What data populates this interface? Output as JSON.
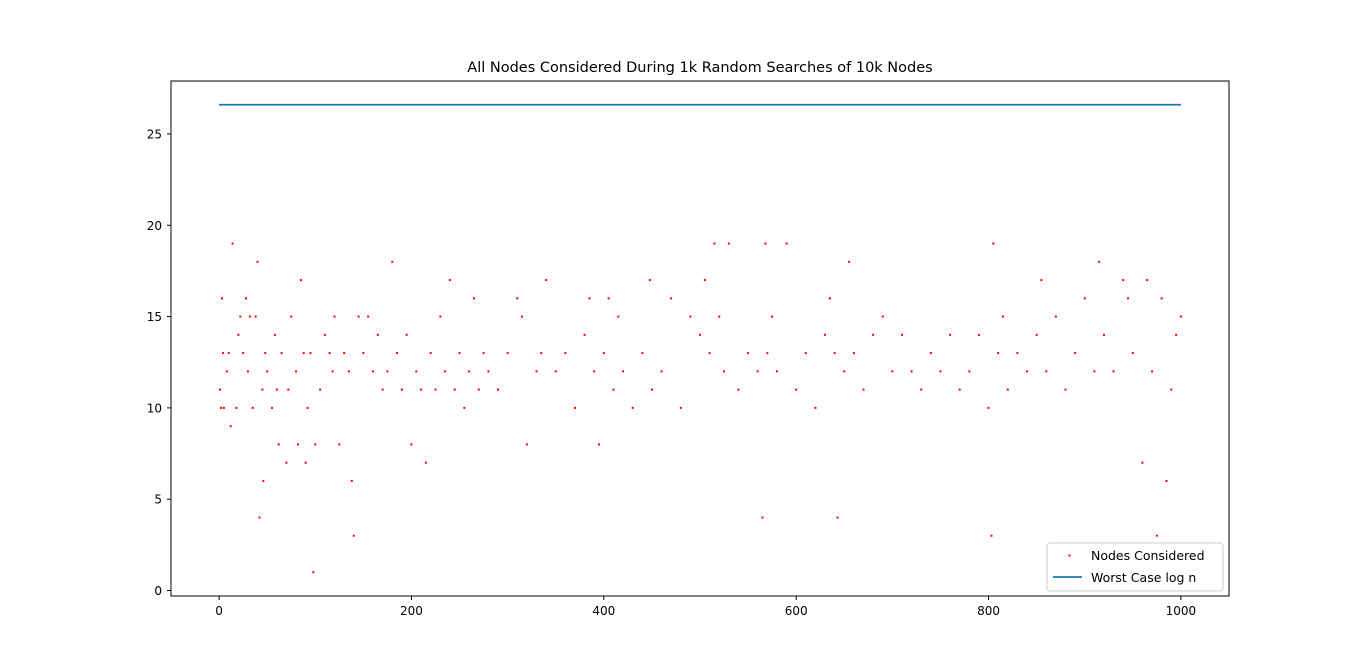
{
  "chart_data": {
    "type": "scatter",
    "title": "All Nodes Considered During 1k Random Searches of 10k Nodes",
    "xlabel": "",
    "ylabel": "",
    "xlim": [
      -50,
      1050
    ],
    "ylim": [
      -0.3,
      27.9
    ],
    "xticks": [
      0,
      200,
      400,
      600,
      800,
      1000
    ],
    "yticks": [
      0,
      5,
      10,
      15,
      20,
      25
    ],
    "grid": false,
    "legend_position": "lower-right",
    "series": [
      {
        "name": "Nodes Considered",
        "kind": "scatter",
        "color": "#ff0000",
        "x": [
          1,
          2,
          3,
          4,
          5,
          8,
          10,
          12,
          14,
          18,
          20,
          22,
          25,
          28,
          30,
          32,
          35,
          38,
          40,
          42,
          45,
          46,
          48,
          50,
          55,
          58,
          60,
          62,
          65,
          70,
          72,
          75,
          80,
          82,
          85,
          88,
          90,
          92,
          95,
          98,
          100,
          105,
          110,
          115,
          118,
          120,
          125,
          130,
          135,
          138,
          140,
          145,
          150,
          155,
          160,
          165,
          170,
          175,
          180,
          185,
          190,
          195,
          200,
          205,
          210,
          215,
          220,
          225,
          230,
          235,
          240,
          245,
          250,
          255,
          260,
          265,
          270,
          275,
          280,
          290,
          300,
          310,
          315,
          320,
          330,
          335,
          340,
          350,
          360,
          370,
          380,
          385,
          390,
          395,
          400,
          405,
          410,
          415,
          420,
          430,
          440,
          448,
          450,
          460,
          470,
          480,
          490,
          500,
          505,
          510,
          515,
          520,
          525,
          530,
          540,
          550,
          560,
          565,
          568,
          570,
          575,
          580,
          590,
          600,
          610,
          620,
          630,
          635,
          640,
          643,
          650,
          655,
          660,
          670,
          680,
          690,
          700,
          710,
          720,
          730,
          740,
          750,
          760,
          770,
          780,
          790,
          800,
          803,
          805,
          810,
          815,
          820,
          830,
          840,
          850,
          855,
          860,
          870,
          880,
          890,
          900,
          910,
          915,
          920,
          930,
          940,
          945,
          950,
          960,
          965,
          970,
          975,
          980,
          985,
          990,
          995,
          1000
        ],
        "y": [
          11,
          10,
          16,
          13,
          10,
          12,
          13,
          9,
          19,
          10,
          14,
          15,
          13,
          16,
          12,
          15,
          10,
          15,
          18,
          4,
          11,
          6,
          13,
          12,
          10,
          14,
          11,
          8,
          13,
          7,
          11,
          15,
          12,
          8,
          17,
          13,
          7,
          10,
          13,
          1,
          8,
          11,
          14,
          13,
          12,
          15,
          8,
          13,
          12,
          6,
          3,
          15,
          13,
          15,
          12,
          14,
          11,
          12,
          18,
          13,
          11,
          14,
          8,
          12,
          11,
          7,
          13,
          11,
          15,
          12,
          17,
          11,
          13,
          10,
          12,
          16,
          11,
          13,
          12,
          11,
          13,
          16,
          15,
          8,
          12,
          13,
          17,
          12,
          13,
          10,
          14,
          16,
          12,
          8,
          13,
          16,
          11,
          15,
          12,
          10,
          13,
          17,
          11,
          12,
          16,
          10,
          15,
          14,
          17,
          13,
          19,
          15,
          12,
          19,
          11,
          13,
          12,
          4,
          19,
          13,
          15,
          12,
          19,
          11,
          13,
          10,
          14,
          16,
          13,
          4,
          12,
          18,
          13,
          11,
          14,
          15,
          12,
          14,
          12,
          11,
          13,
          12,
          14,
          11,
          12,
          14,
          10,
          3,
          19,
          13,
          15,
          11,
          13,
          12,
          14,
          17,
          12,
          15,
          11,
          13,
          16,
          12,
          18,
          14,
          12,
          17,
          16,
          13,
          7,
          17,
          12,
          3,
          16,
          6,
          11,
          14,
          15
        ]
      },
      {
        "name": "Worst Case log n",
        "kind": "line",
        "color": "#1f77b4",
        "x": [
          0,
          1000
        ],
        "y": [
          26.6,
          26.6
        ]
      }
    ]
  }
}
